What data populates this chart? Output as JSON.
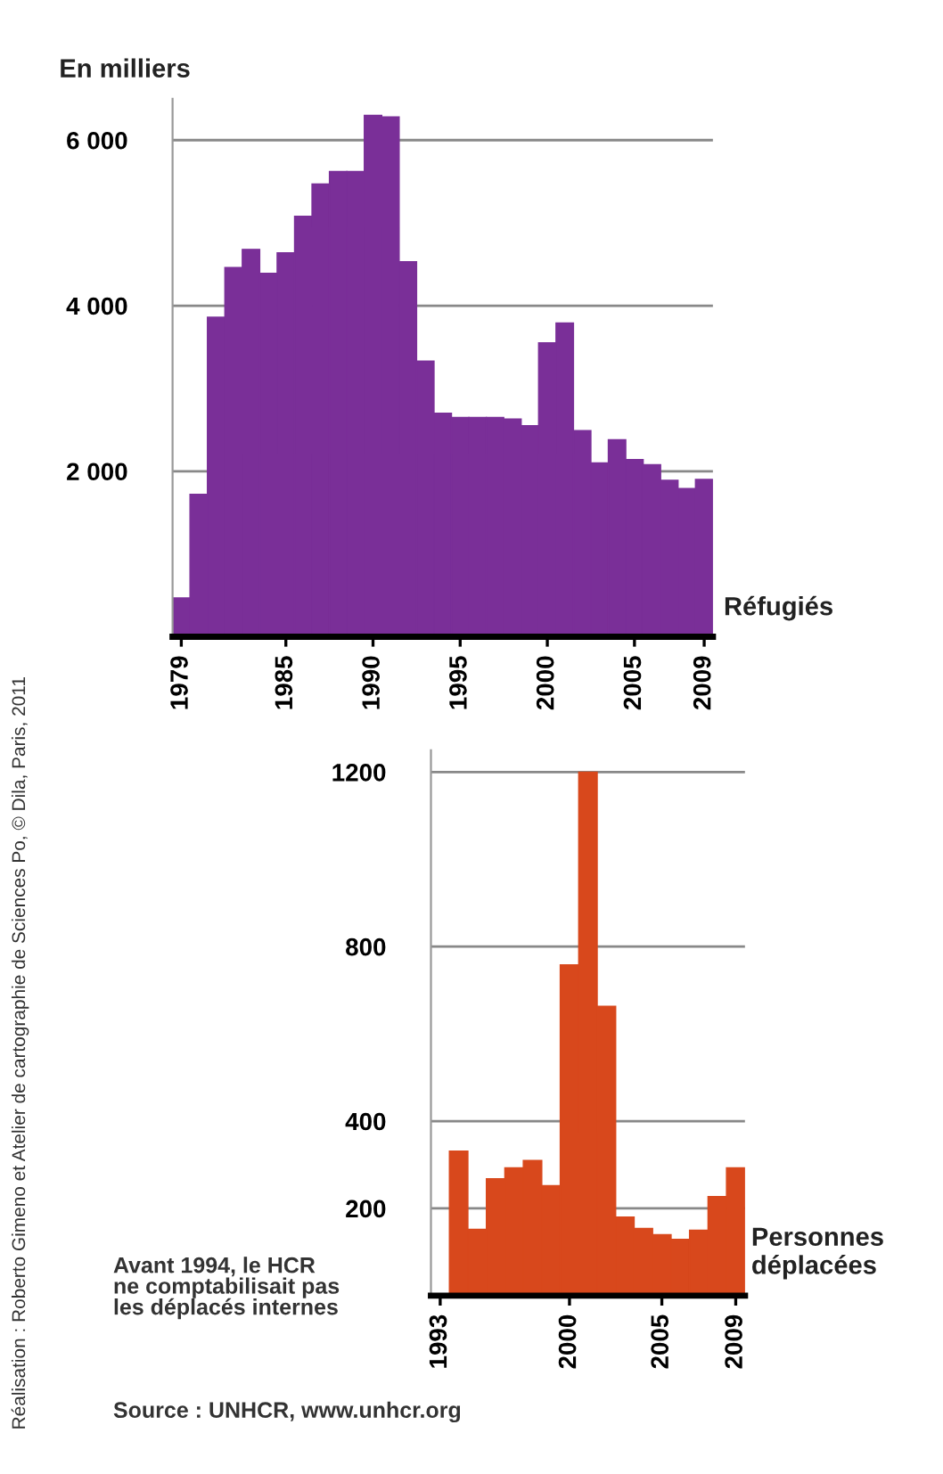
{
  "chart_data": [
    {
      "type": "bar",
      "ylabel": "En milliers",
      "x": [
        1979,
        1980,
        1981,
        1982,
        1983,
        1984,
        1985,
        1986,
        1987,
        1988,
        1989,
        1990,
        1991,
        1992,
        1993,
        1994,
        1995,
        1996,
        1997,
        1998,
        1999,
        2000,
        2001,
        2002,
        2003,
        2004,
        2005,
        2006,
        2007,
        2008,
        2009
      ],
      "series": [
        {
          "name": "Réfugiés",
          "color": "#7a2f98",
          "values": [
            470,
            1720,
            3860,
            4460,
            4680,
            4390,
            4640,
            5080,
            5470,
            5620,
            5620,
            6300,
            6280,
            4530,
            3330,
            2700,
            2650,
            2650,
            2650,
            2630,
            2550,
            3550,
            3790,
            2490,
            2100,
            2380,
            2140,
            2080,
            1890,
            1790,
            1900
          ]
        }
      ],
      "xlim": [
        1978.5,
        2009.5
      ],
      "xticks": [
        1979,
        1985,
        1990,
        1995,
        2000,
        2005,
        2009
      ],
      "ylim": [
        0,
        6500
      ],
      "yticks": [
        {
          "value": 2000,
          "label": "2 000"
        },
        {
          "value": 4000,
          "label": "4 000"
        },
        {
          "value": 6000,
          "label": "6 000"
        }
      ],
      "grid": "y",
      "annotations": [
        "Réalisation : Roberto Gimeno et Atelier de cartographie de Sciences Po, © Dila, Paris, 2011"
      ]
    },
    {
      "type": "bar",
      "x": [
        1994,
        1995,
        1996,
        1997,
        1998,
        1999,
        2000,
        2001,
        2002,
        2003,
        2004,
        2005,
        2006,
        2007,
        2008,
        2009
      ],
      "series": [
        {
          "name": "Personnes déplacées",
          "color": "#d8481c",
          "values": [
            331,
            152,
            268,
            293,
            310,
            252,
            758,
            1200,
            663,
            180,
            154,
            140,
            129,
            150,
            227,
            293
          ]
        }
      ],
      "xlim": [
        1992.5,
        2009.5
      ],
      "xticks": [
        1993,
        2000,
        2005,
        2009
      ],
      "ylim": [
        0,
        1250
      ],
      "yticks": [
        200,
        400,
        800,
        1200
      ],
      "grid": "y",
      "annotations": [
        "Avant 1994, le HCR\nne comptabilisait pas\nles déplacés internes",
        "Source : UNHCR, www.unhcr.org"
      ]
    }
  ]
}
